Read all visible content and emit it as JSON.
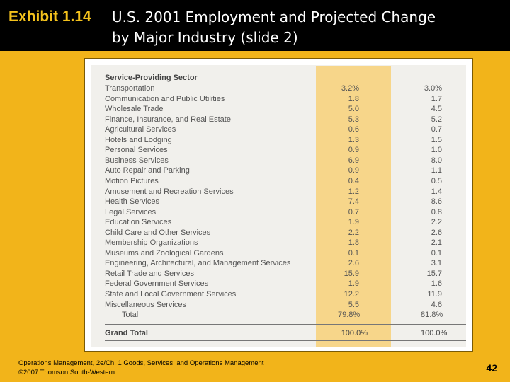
{
  "header": {
    "exhibit": "Exhibit 1.14",
    "title_line1": "U.S. 2001 Employment and Projected Change",
    "title_line2": "by Major Industry (slide 2)"
  },
  "table": {
    "section_title": "Service-Providing Sector",
    "rows": [
      {
        "name": "Transportation",
        "v1": "3.2%",
        "v2": "3.0%"
      },
      {
        "name": "Communication and Public Utilities",
        "v1": "1.8",
        "v2": "1.7"
      },
      {
        "name": "Wholesale Trade",
        "v1": "5.0",
        "v2": "4.5"
      },
      {
        "name": "Finance, Insurance, and Real Estate",
        "v1": "5.3",
        "v2": "5.2"
      },
      {
        "name": "Agricultural Services",
        "v1": "0.6",
        "v2": "0.7"
      },
      {
        "name": "Hotels and Lodging",
        "v1": "1.3",
        "v2": "1.5"
      },
      {
        "name": "Personal Services",
        "v1": "0.9",
        "v2": "1.0"
      },
      {
        "name": "Business Services",
        "v1": "6.9",
        "v2": "8.0"
      },
      {
        "name": "Auto Repair and Parking",
        "v1": "0.9",
        "v2": "1.1"
      },
      {
        "name": "Motion Pictures",
        "v1": "0.4",
        "v2": "0.5"
      },
      {
        "name": "Amusement and Recreation Services",
        "v1": "1.2",
        "v2": "1.4"
      },
      {
        "name": "Health Services",
        "v1": "7.4",
        "v2": "8.6"
      },
      {
        "name": "Legal Services",
        "v1": "0.7",
        "v2": "0.8"
      },
      {
        "name": "Education Services",
        "v1": "1.9",
        "v2": "2.2"
      },
      {
        "name": "Child Care and Other Services",
        "v1": "2.2",
        "v2": "2.6"
      },
      {
        "name": "Membership Organizations",
        "v1": "1.8",
        "v2": "2.1"
      },
      {
        "name": "Museums and Zoological Gardens",
        "v1": "0.1",
        "v2": "0.1"
      },
      {
        "name": "Engineering, Architectural, and Management Services",
        "v1": "2.6",
        "v2": "3.1"
      },
      {
        "name": "Retail Trade and Services",
        "v1": "15.9",
        "v2": "15.7"
      },
      {
        "name": "Federal Government Services",
        "v1": "1.9",
        "v2": "1.6"
      },
      {
        "name": "State and Local Government Services",
        "v1": "12.2",
        "v2": "11.9"
      },
      {
        "name": "Miscellaneous Services",
        "v1": "5.5",
        "v2": "4.6"
      },
      {
        "name": "Total",
        "v1": "79.8%",
        "v2": "81.8%"
      }
    ],
    "grand_total": {
      "name": "Grand Total",
      "v1": "100.0%",
      "v2": "100.0%"
    }
  },
  "footer": {
    "line1": "Operations Management, 2e/Ch. 1 Goods, Services, and Operations Management",
    "line2": "©2007 Thomson South-Western",
    "page": "42"
  }
}
